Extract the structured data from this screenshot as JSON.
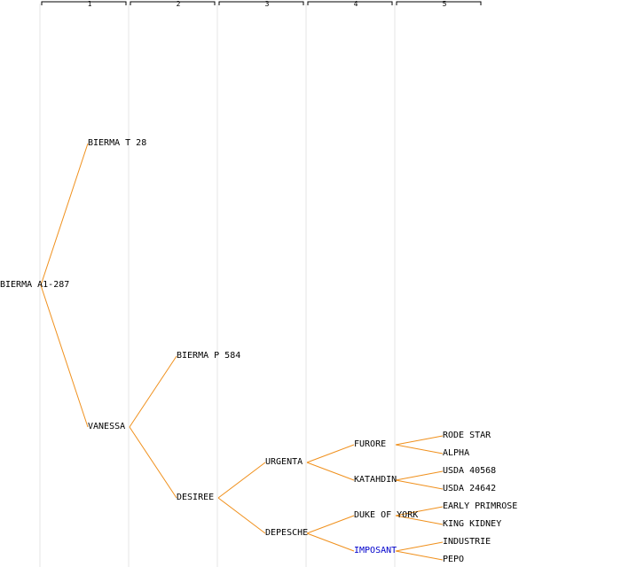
{
  "generations": [
    "1",
    "2",
    "3",
    "4",
    "5"
  ],
  "colors": {
    "edge": "#f0901c",
    "column": "#e6e6e6",
    "bracket": "#000000",
    "highlight_text": "#0000cc"
  },
  "nodes": {
    "root": {
      "label": "BIERMA A1-287"
    },
    "bierma_t28": {
      "label": "BIERMA T 28"
    },
    "vanessa": {
      "label": "VANESSA"
    },
    "bierma_p584": {
      "label": "BIERMA P 584"
    },
    "desiree": {
      "label": "DESIREE"
    },
    "urgenta": {
      "label": "URGENTA"
    },
    "depesche": {
      "label": "DEPESCHE"
    },
    "furore": {
      "label": "FURORE"
    },
    "katahdin": {
      "label": "KATAHDIN"
    },
    "duke_of_york": {
      "label": "DUKE OF YORK"
    },
    "imposant": {
      "label": "IMPOSANT",
      "highlight": true
    },
    "rode_star": {
      "label": "RODE STAR"
    },
    "alpha": {
      "label": "ALPHA"
    },
    "usda_40568": {
      "label": "USDA 40568"
    },
    "usda_24642": {
      "label": "USDA 24642"
    },
    "early_primrose": {
      "label": "EARLY PRIMROSE"
    },
    "king_kidney": {
      "label": "KING KIDNEY"
    },
    "industrie": {
      "label": "INDUSTRIE"
    },
    "pepo": {
      "label": "PEPO"
    }
  },
  "edges": [
    [
      "root",
      "bierma_t28"
    ],
    [
      "root",
      "vanessa"
    ],
    [
      "vanessa",
      "bierma_p584"
    ],
    [
      "vanessa",
      "desiree"
    ],
    [
      "desiree",
      "urgenta"
    ],
    [
      "desiree",
      "depesche"
    ],
    [
      "urgenta",
      "furore"
    ],
    [
      "urgenta",
      "katahdin"
    ],
    [
      "depesche",
      "duke_of_york"
    ],
    [
      "depesche",
      "imposant"
    ],
    [
      "furore",
      "rode_star"
    ],
    [
      "furore",
      "alpha"
    ],
    [
      "katahdin",
      "usda_40568"
    ],
    [
      "katahdin",
      "usda_24642"
    ],
    [
      "duke_of_york",
      "early_primrose"
    ],
    [
      "duke_of_york",
      "king_kidney"
    ],
    [
      "imposant",
      "industrie"
    ],
    [
      "imposant",
      "pepo"
    ]
  ]
}
